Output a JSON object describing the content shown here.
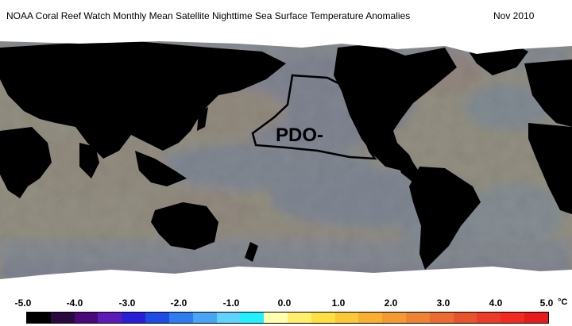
{
  "title": {
    "left": "NOAA Coral Reef Watch Monthly Mean Satellite Nighttime Sea Surface Temperature Anomalies",
    "right": "Nov 2010"
  },
  "map": {
    "annotation": "PDO-",
    "layers": [
      "sea-surface-temperature-anomaly",
      "land-mask",
      "sea-ice-mask",
      "pdo-outline"
    ]
  },
  "colorbar": {
    "ticks": [
      "-5.0",
      "-4.0",
      "-3.0",
      "-2.0",
      "-1.0",
      "0.0",
      "1.0",
      "2.0",
      "3.0",
      "4.0",
      "5.0"
    ],
    "unit": "°C",
    "colors": [
      "#000000",
      "#2a0a3e",
      "#4a087a",
      "#5d1bb5",
      "#2a1fd8",
      "#1d4be5",
      "#2e7cf0",
      "#49a6f7",
      "#5fd3fb",
      "#20f0ff",
      "#ffffb0",
      "#ffef6a",
      "#ffe040",
      "#fcc836",
      "#f9b030",
      "#f59a30",
      "#f08333",
      "#ec6b30",
      "#e8532a",
      "#ec3b26",
      "#f32a20",
      "#e81b1b"
    ]
  },
  "colors": {
    "land": "#000000",
    "ice": "#ffffff",
    "pdo_outline": "#000000"
  }
}
